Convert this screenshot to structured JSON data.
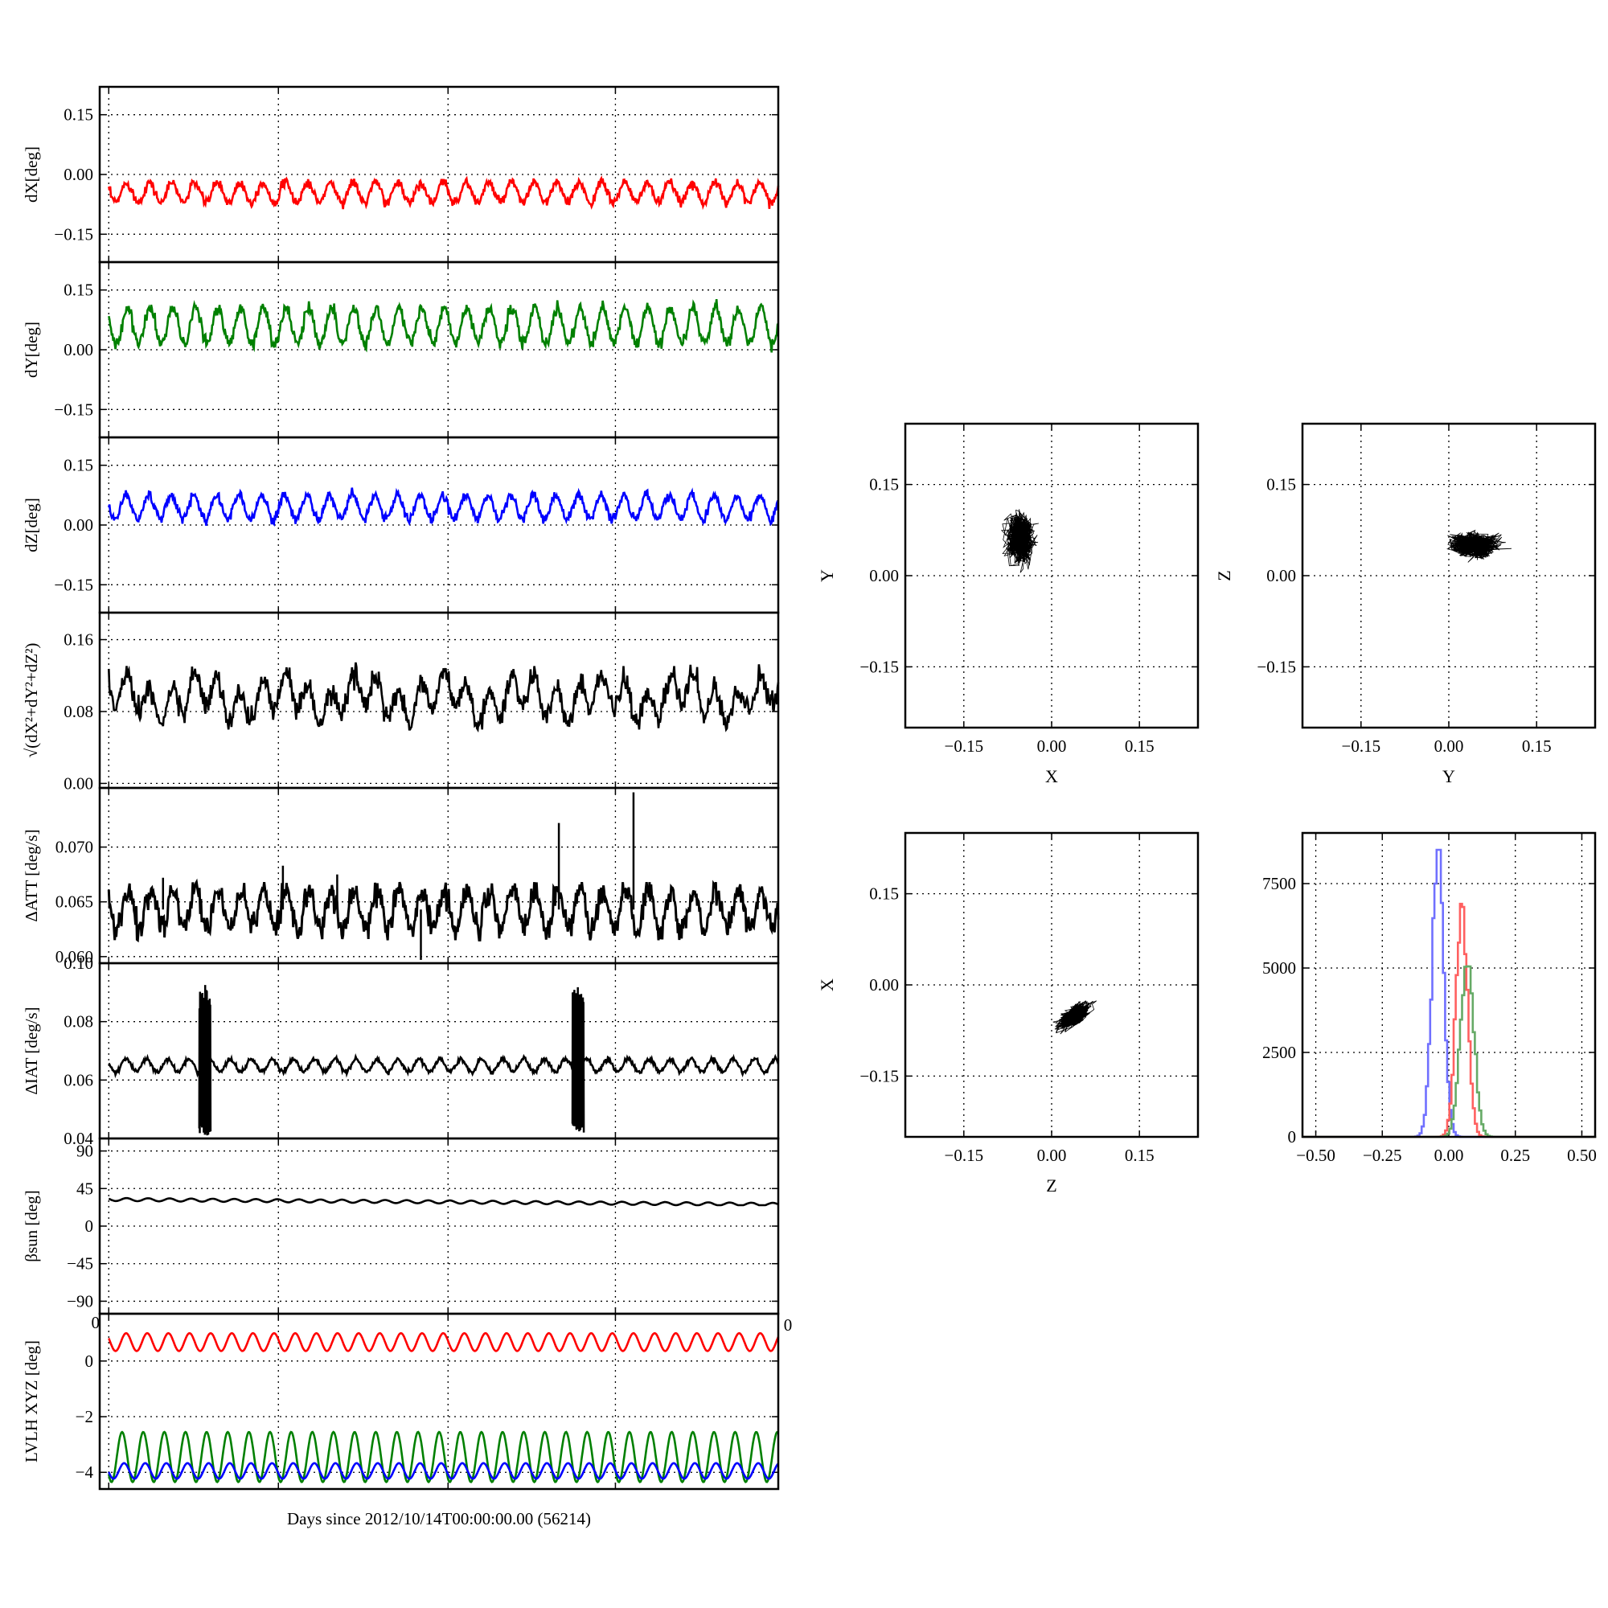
{
  "figure": {
    "xlabel": "Days since 2012/10/14T00:00:00.00 (56214)",
    "lvlh_top_left_label": "0",
    "lvlh_top_right_label": "0"
  },
  "chart_data": [
    {
      "id": "dx",
      "type": "line",
      "ylabel": "dX[deg]",
      "ylim": [
        -0.22,
        0.22
      ],
      "yticks": [
        0.15,
        0.0,
        -0.15
      ],
      "yticklabels": [
        "0.15",
        "0.00",
        "−0.15"
      ],
      "xlim": [
        0,
        30
      ],
      "grid": true,
      "series": [
        {
          "color": "#ff0000",
          "baseline": -0.045,
          "waves": [
            [
              0.025,
              1.0,
              0.3
            ]
          ],
          "noise": 0.006,
          "ymin": -0.1,
          "ymax": -0.01
        }
      ]
    },
    {
      "id": "dy",
      "type": "line",
      "ylabel": "dY[deg]",
      "ylim": [
        -0.22,
        0.22
      ],
      "yticks": [
        0.15,
        0.0,
        -0.15
      ],
      "yticklabels": [
        "0.15",
        "0.00",
        "−0.15"
      ],
      "xlim": [
        0,
        30
      ],
      "grid": true,
      "series": [
        {
          "color": "#008000",
          "baseline": 0.06,
          "waves": [
            [
              0.045,
              1.0,
              0.1
            ]
          ],
          "noise": 0.008,
          "ymin": -0.02,
          "ymax": 0.14
        }
      ]
    },
    {
      "id": "dz",
      "type": "line",
      "ylabel": "dZ[deg]",
      "ylim": [
        -0.22,
        0.22
      ],
      "yticks": [
        0.15,
        0.0,
        -0.15
      ],
      "yticklabels": [
        "0.15",
        "0.00",
        "−0.15"
      ],
      "xlim": [
        0,
        30
      ],
      "grid": true,
      "series": [
        {
          "color": "#0000ff",
          "baseline": 0.045,
          "waves": [
            [
              0.03,
              1.0,
              0.5
            ]
          ],
          "noise": 0.006,
          "ymin": -0.02,
          "ymax": 0.1
        }
      ]
    },
    {
      "id": "norm",
      "type": "line",
      "ylabel": "√(dX²+dY²+dZ²)",
      "ylim": [
        -0.005,
        0.19
      ],
      "yticks": [
        0.16,
        0.08,
        0.0
      ],
      "yticklabels": [
        "0.16",
        "0.08",
        "0.00"
      ],
      "xlim": [
        0,
        30
      ],
      "grid": true,
      "series": [
        {
          "color": "#000000",
          "baseline": 0.095,
          "waves": [
            [
              0.018,
              1.0,
              0.2
            ],
            [
              0.012,
              0.28,
              0.0
            ]
          ],
          "noise": 0.006,
          "ymin": 0.06,
          "ymax": 0.15
        }
      ]
    },
    {
      "id": "datt",
      "type": "line",
      "ylabel": "ΔATT [deg/s]",
      "ylim": [
        0.0594,
        0.0754
      ],
      "yticks": [
        0.07,
        0.065,
        0.06
      ],
      "yticklabels": [
        "0.070",
        "0.065",
        "0.060"
      ],
      "xlim": [
        0,
        30
      ],
      "grid": true,
      "series": [
        {
          "color": "#000000",
          "baseline": 0.0643,
          "waves": [
            [
              0.0018,
              1.0,
              0.0
            ]
          ],
          "noise": 0.0006,
          "ymin": 0.0615,
          "ymax": 0.0668
        }
      ],
      "spikes": [
        {
          "x": 8.1,
          "y": 0.0683
        },
        {
          "x": 10.5,
          "y": 0.0675
        },
        {
          "x": 14.2,
          "y": 0.0597
        },
        {
          "x": 20.3,
          "y": 0.0722
        },
        {
          "x": 23.6,
          "y": 0.075
        },
        {
          "x": 2.8,
          "y": 0.0672
        }
      ]
    },
    {
      "id": "diat",
      "type": "line",
      "ylabel": "ΔIAT [deg/s]",
      "ylim": [
        0.04,
        0.1
      ],
      "yticks": [
        0.1,
        0.08,
        0.06,
        0.04
      ],
      "yticklabels": [
        "0.10",
        "0.08",
        "0.06",
        "0.04"
      ],
      "xlim": [
        0,
        30
      ],
      "grid": true,
      "series": [
        {
          "color": "#000000",
          "baseline": 0.065,
          "waves": [
            [
              0.0022,
              1.08,
              0.0
            ]
          ],
          "noise": 0.0004,
          "ymin": 0.061,
          "ymax": 0.069
        }
      ],
      "bursts": [
        {
          "x0": 4.4,
          "x1": 4.9,
          "ymin": 0.041,
          "ymax": 0.093
        },
        {
          "x0": 20.9,
          "x1": 21.4,
          "ymin": 0.042,
          "ymax": 0.093
        }
      ]
    },
    {
      "id": "beta",
      "type": "line",
      "ylabel": "βsun [deg]",
      "ylim": [
        -105,
        105
      ],
      "yticks": [
        90,
        45,
        0,
        -45,
        -90
      ],
      "yticklabels": [
        "90",
        "45",
        "0",
        "−45",
        "−90"
      ],
      "xlim": [
        0,
        30
      ],
      "grid": true,
      "series": [
        {
          "color": "#000000",
          "baseline": 32,
          "trend": -6,
          "waves": [
            [
              1.8,
              1.05,
              0.0
            ]
          ],
          "noise": 0,
          "ymin": 25,
          "ymax": 36
        }
      ]
    },
    {
      "id": "lvlh",
      "type": "line",
      "ylabel": "LVLH XYZ [deg]",
      "ylim": [
        -4.6,
        1.7
      ],
      "yticks": [
        0,
        -2,
        -4
      ],
      "yticklabels": [
        "0",
        "−2",
        "−4"
      ],
      "xlim": [
        0,
        30
      ],
      "grid": true,
      "series": [
        {
          "color": "#ff0000",
          "baseline": 0.68,
          "waves": [
            [
              0.32,
              1.07,
              0.0
            ]
          ],
          "noise": 0,
          "ymin": 0.35,
          "ymax": 1.0
        },
        {
          "color": "#008000",
          "baseline": -3.45,
          "waves": [
            [
              0.9,
              1.07,
              1.2
            ]
          ],
          "noise": 0,
          "ymin": -4.4,
          "ymax": -2.5
        },
        {
          "color": "#0000ff",
          "baseline": -3.95,
          "waves": [
            [
              0.28,
              1.07,
              0.6
            ]
          ],
          "noise": 0,
          "ymin": -4.25,
          "ymax": -3.65
        }
      ]
    },
    {
      "id": "xy",
      "type": "scatter",
      "xlabel": "X",
      "ylabel": "Y",
      "xlim": [
        -0.25,
        0.25
      ],
      "ylim": [
        -0.25,
        0.25
      ],
      "xticks": [
        -0.15,
        0.0,
        0.15
      ],
      "xticklabels": [
        "−0.15",
        "0.00",
        "0.15"
      ],
      "yticks": [
        0.15,
        0.0,
        -0.15
      ],
      "yticklabels": [
        "0.15",
        "0.00",
        "−0.15"
      ],
      "grid": true,
      "cloud": {
        "color": "#000000",
        "cx": -0.055,
        "cy": 0.06,
        "sx": 0.018,
        "sy": 0.033
      }
    },
    {
      "id": "yz",
      "type": "scatter",
      "xlabel": "Y",
      "ylabel": "Z",
      "xlim": [
        -0.25,
        0.25
      ],
      "ylim": [
        -0.25,
        0.25
      ],
      "xticks": [
        -0.15,
        0.0,
        0.15
      ],
      "xticklabels": [
        "−0.15",
        "0.00",
        "0.15"
      ],
      "yticks": [
        0.15,
        0.0,
        -0.15
      ],
      "yticklabels": [
        "0.15",
        "0.00",
        "−0.15"
      ],
      "grid": true,
      "cloud": {
        "color": "#000000",
        "cx": 0.045,
        "cy": 0.05,
        "sx": 0.035,
        "sy": 0.016
      }
    },
    {
      "id": "zx",
      "type": "scatter",
      "xlabel": "Z",
      "ylabel": "X",
      "xlim": [
        -0.25,
        0.25
      ],
      "ylim": [
        -0.25,
        0.25
      ],
      "xticks": [
        -0.15,
        0.0,
        0.15
      ],
      "xticklabels": [
        "−0.15",
        "0.00",
        "0.15"
      ],
      "yticks": [
        0.15,
        0.0,
        -0.15
      ],
      "yticklabels": [
        "0.15",
        "0.00",
        "−0.15"
      ],
      "grid": true,
      "cloud": {
        "color": "#000000",
        "cx": 0.04,
        "cy": -0.05,
        "sx": 0.022,
        "sy": 0.013,
        "tilt": 0.5
      }
    },
    {
      "id": "hist",
      "type": "line",
      "xlim": [
        -0.55,
        0.55
      ],
      "ylim": [
        0,
        9000
      ],
      "xticks": [
        -0.5,
        -0.25,
        0.0,
        0.25,
        0.5
      ],
      "xticklabels": [
        "−0.50",
        "−0.25",
        "0.00",
        "0.25",
        "0.50"
      ],
      "yticks": [
        7500,
        5000,
        2500,
        0
      ],
      "yticklabels": [
        "7500",
        "5000",
        "2500",
        "0"
      ],
      "grid": true,
      "series": [
        {
          "name": "",
          "color": "#7070ff",
          "center": -0.045,
          "sigma": 0.022,
          "peak": 8500
        },
        {
          "name": "",
          "color": "#ff6060",
          "center": 0.045,
          "sigma": 0.022,
          "peak": 6900
        },
        {
          "name": "",
          "color": "#66aa66",
          "center": 0.065,
          "sigma": 0.025,
          "peak": 5400
        }
      ]
    }
  ]
}
